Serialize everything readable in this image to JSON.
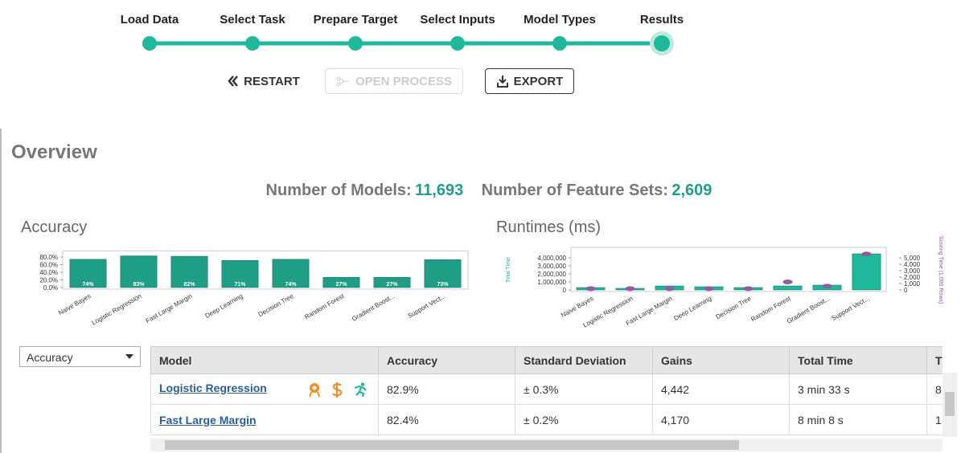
{
  "steps": [
    "Load Data",
    "Select Task",
    "Prepare Target",
    "Select Inputs",
    "Model Types",
    "Results"
  ],
  "buttons": {
    "restart": "RESTART",
    "open_process": "OPEN PROCESS",
    "export": "EXPORT"
  },
  "overview": {
    "title": "Overview",
    "models_label": "Number of Models:",
    "models_value": "11,693",
    "feature_sets_label": "Number of Feature Sets:",
    "feature_sets_value": "2,609"
  },
  "chart_data": [
    {
      "type": "bar",
      "title": "Accuracy",
      "categories": [
        "Naive Bayes",
        "Logistic Regression",
        "Fast Large Margin",
        "Deep Learning",
        "Decision Tree",
        "Random Forest",
        "Gradient Boost...",
        "Support Vect..."
      ],
      "values": [
        74,
        83,
        82,
        71,
        74,
        27,
        27,
        73
      ],
      "value_labels": [
        "74%",
        "83%",
        "82%",
        "71%",
        "74%",
        "27%",
        "27%",
        "73%"
      ],
      "color": "#1f9e86",
      "ylim": [
        0,
        90
      ],
      "yticks": [
        {
          "value": 0,
          "label": "0.0%"
        },
        {
          "value": 20,
          "label": "20.0%"
        },
        {
          "value": 40,
          "label": "40.0%"
        },
        {
          "value": 60,
          "label": "60.0%"
        },
        {
          "value": 80,
          "label": "80.0%"
        }
      ]
    },
    {
      "type": "bar",
      "title": "Runtimes (ms)",
      "categories": [
        "Naive Bayes",
        "Logistic Regression",
        "Fast Large Margin",
        "Deep Learning",
        "Decision Tree",
        "Random Forest",
        "Gradient Boost...",
        "Support Vect..."
      ],
      "series": [
        {
          "name": "Total Time",
          "color": "#20b89a",
          "values": [
            300000,
            200000,
            500000,
            400000,
            300000,
            500000,
            600000,
            4500000
          ]
        },
        {
          "name": "Scoring Time (1,000 Rows)",
          "color": "#8e5ea2",
          "axis": "y2",
          "values": [
            200,
            200,
            200,
            200,
            200,
            1250,
            600,
            5600
          ]
        }
      ],
      "ylim": [
        0,
        5000000
      ],
      "yticks": [
        0,
        {
          "value": 1000000,
          "label": "1,000,000"
        },
        {
          "value": 2000000,
          "label": "2,000,000"
        },
        {
          "value": 3000000,
          "label": "3,000,000"
        },
        {
          "value": 4000000,
          "label": "4,000,000"
        }
      ],
      "y2lim": [
        0,
        6250
      ],
      "y2ticks": [
        0,
        {
          "value": 1000,
          "label": "1,000"
        },
        {
          "value": 2000,
          "label": "2,000"
        },
        {
          "value": 3000,
          "label": "3,000"
        },
        {
          "value": 4000,
          "label": "4,000"
        },
        {
          "value": 5000,
          "label": "5,000"
        }
      ]
    }
  ],
  "selector": "Accuracy",
  "table": {
    "headers": [
      "Model",
      "Accuracy",
      "Standard Deviation",
      "Gains",
      "Total Time",
      "T"
    ],
    "rows": [
      [
        "Logistic Regression",
        "82.9%",
        "± 0.3%",
        "4,442",
        "3 min 33 s",
        "8"
      ],
      [
        "Fast Large Margin",
        "82.4%",
        "± 0.2%",
        "4,170",
        "8 min 8 s",
        "1"
      ]
    ]
  }
}
